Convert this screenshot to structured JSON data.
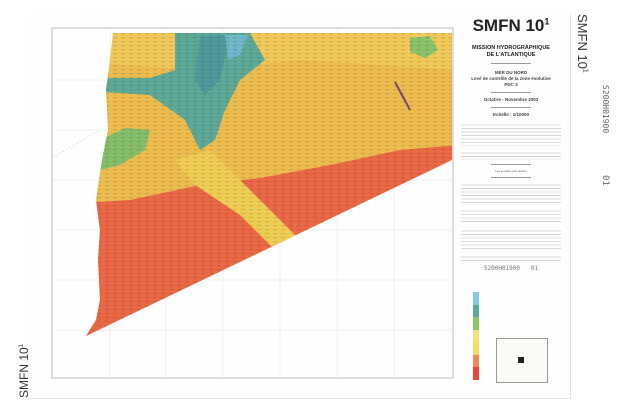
{
  "sheet": {
    "title": "SMFN 10",
    "title_sup": "1",
    "organisation": [
      "MISSION HYDROGRAPHIQUE",
      "DE L'ATLANTIQUE"
    ],
    "area": "MER DU NORD",
    "subject": "Levé de contrôle de la zone évolutive",
    "zone": "PDC 3",
    "date": "Octobre - Novembre 2003",
    "scale": "Echelle : 1/10000",
    "soundings_note": "Les sondes sont réelles",
    "handwritten_ref": "S200H01900",
    "handwritten_index": "01"
  },
  "margin": {
    "side_title": "SMFN 10",
    "side_title_sup": "1",
    "ref_vertical": "S200H01900",
    "index_vertical": "01"
  },
  "map": {
    "colors": {
      "deep_blue": "#7cc3df",
      "teal": "#5ba595",
      "green": "#8cc26a",
      "yellow": "#f3d66a",
      "light_yellow": "#f5e27a",
      "orange": "#ef8a52",
      "red": "#e9513f"
    }
  },
  "legend": {
    "colors": [
      "#86c8e6",
      "#5aa99b",
      "#8fc566",
      "#f3e07a",
      "#f6dc62",
      "#f08a55",
      "#e8473c"
    ]
  }
}
